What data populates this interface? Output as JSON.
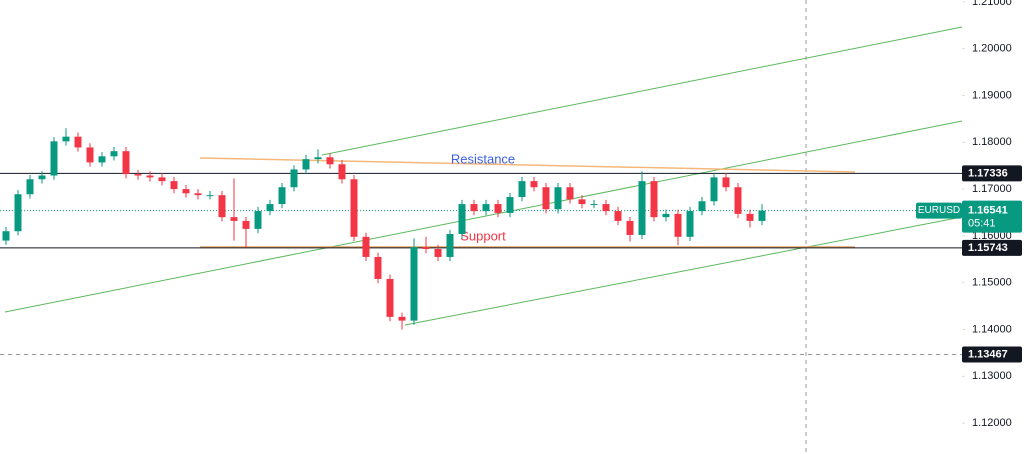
{
  "chart_data": {
    "type": "candlestick",
    "symbol": "EURUSD",
    "countdown": "05:41",
    "last_price": 1.16541,
    "levels": [
      1.17336,
      1.15743
    ],
    "crosshair": 1.13467,
    "annotations": [
      "Resistance",
      "Support"
    ],
    "ylim": [
      1.1134,
      1.2104
    ],
    "yticks": [
      {
        "value": 1.12,
        "label": "1.12000"
      },
      {
        "value": 1.13,
        "label": "1.13000"
      },
      {
        "value": 1.14,
        "label": "1.14000"
      },
      {
        "value": 1.15,
        "label": "1.15000"
      },
      {
        "value": 1.16,
        "label": "1.16000"
      },
      {
        "value": 1.17,
        "label": "1.17000"
      },
      {
        "value": 1.18,
        "label": "1.18000"
      },
      {
        "value": 1.19,
        "label": "1.19000"
      },
      {
        "value": 1.2,
        "label": "1.20000"
      },
      {
        "value": 1.21,
        "label": "1.21000"
      }
    ],
    "up_color": "#089981",
    "down_color": "#f23645",
    "open": [
      1.159,
      1.161,
      1.1689,
      1.1721,
      1.1729,
      1.1802,
      1.1812,
      1.1789,
      1.1757,
      1.177,
      1.1781,
      1.1732,
      1.1729,
      1.1725,
      1.1717,
      1.17,
      1.1691,
      1.1687,
      1.1687,
      1.164,
      1.1632,
      1.1615,
      1.1653,
      1.1668,
      1.1704,
      1.1742,
      1.1764,
      1.1768,
      1.1753,
      1.1721,
      1.1598,
      1.1555,
      1.1508,
      1.1427,
      1.1419,
      1.1576,
      1.1572,
      1.1555,
      1.1604,
      1.1668,
      1.1653,
      1.1668,
      1.1649,
      1.1683,
      1.1717,
      1.1704,
      1.1657,
      1.1704,
      1.1678,
      1.1668,
      1.1668,
      1.1653,
      1.1632,
      1.1602,
      1.1717,
      1.164,
      1.1647,
      1.1598,
      1.1653,
      1.1674,
      1.1725,
      1.1704,
      1.1647,
      1.1632
    ],
    "high": [
      1.1619,
      1.1698,
      1.173,
      1.1738,
      1.1811,
      1.183,
      1.1821,
      1.1798,
      1.1779,
      1.179,
      1.179,
      1.1741,
      1.1738,
      1.1734,
      1.1726,
      1.1709,
      1.17,
      1.1696,
      1.1696,
      1.1723,
      1.1641,
      1.1662,
      1.1677,
      1.1713,
      1.1751,
      1.1773,
      1.1785,
      1.1777,
      1.1762,
      1.173,
      1.1607,
      1.1564,
      1.1517,
      1.1436,
      1.1595,
      1.1598,
      1.1581,
      1.1613,
      1.1677,
      1.1677,
      1.1677,
      1.1677,
      1.1692,
      1.1726,
      1.1726,
      1.1713,
      1.1713,
      1.1713,
      1.1687,
      1.1677,
      1.1677,
      1.1662,
      1.1641,
      1.1738,
      1.1726,
      1.1656,
      1.1656,
      1.1662,
      1.1683,
      1.1734,
      1.1734,
      1.1713,
      1.1656,
      1.1668
    ],
    "low": [
      1.1581,
      1.1601,
      1.168,
      1.1712,
      1.172,
      1.1793,
      1.178,
      1.1748,
      1.1748,
      1.1761,
      1.1723,
      1.172,
      1.1716,
      1.1708,
      1.1691,
      1.1682,
      1.1678,
      1.1678,
      1.1631,
      1.159,
      1.1575,
      1.1606,
      1.1644,
      1.1659,
      1.1695,
      1.1733,
      1.1755,
      1.1744,
      1.1712,
      1.1589,
      1.1546,
      1.1499,
      1.1418,
      1.14,
      1.141,
      1.1563,
      1.1546,
      1.1546,
      1.1595,
      1.1644,
      1.1644,
      1.164,
      1.164,
      1.1674,
      1.1695,
      1.1648,
      1.1648,
      1.1669,
      1.1659,
      1.1659,
      1.1644,
      1.1623,
      1.1588,
      1.1593,
      1.1631,
      1.1631,
      1.158,
      1.1589,
      1.1644,
      1.1665,
      1.1695,
      1.1638,
      1.1618,
      1.1623
    ],
    "close": [
      1.161,
      1.1689,
      1.1721,
      1.1729,
      1.1802,
      1.1812,
      1.1789,
      1.1757,
      1.177,
      1.1781,
      1.1732,
      1.1729,
      1.1725,
      1.1717,
      1.17,
      1.1691,
      1.1687,
      1.1687,
      1.164,
      1.1632,
      1.1615,
      1.1653,
      1.1668,
      1.1704,
      1.1742,
      1.1764,
      1.1768,
      1.1753,
      1.1721,
      1.1598,
      1.1555,
      1.1508,
      1.1427,
      1.1419,
      1.1576,
      1.1572,
      1.1555,
      1.1604,
      1.1668,
      1.1653,
      1.1668,
      1.1649,
      1.1683,
      1.1717,
      1.1704,
      1.1657,
      1.1704,
      1.1678,
      1.1668,
      1.1668,
      1.1653,
      1.1632,
      1.1602,
      1.1717,
      1.164,
      1.1647,
      1.1598,
      1.1653,
      1.1674,
      1.1725,
      1.1704,
      1.1647,
      1.1632,
      1.16541
    ]
  }
}
